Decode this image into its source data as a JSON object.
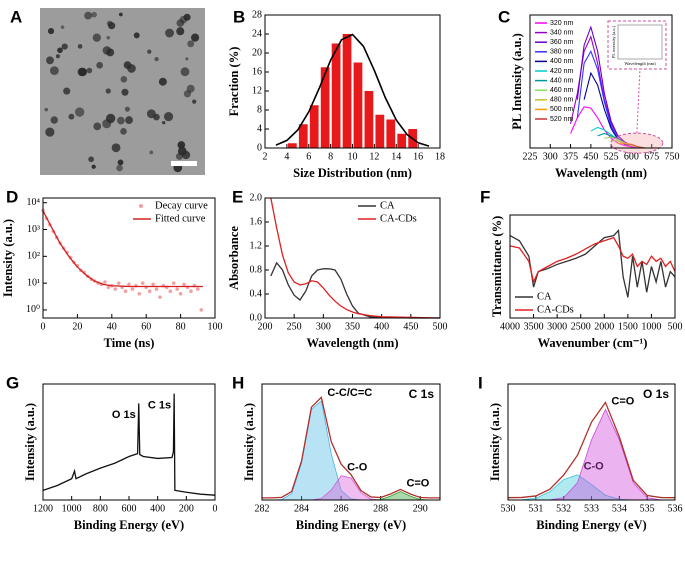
{
  "chart_data": [
    {
      "type": "image",
      "panel": "A"
    },
    {
      "type": "bar",
      "panel": "B",
      "xlabel": "Size Distribution (nm)",
      "ylabel": "Fraction (%)",
      "xlim": [
        2,
        18
      ],
      "ylim": [
        0,
        28
      ],
      "xticks": [
        2,
        4,
        6,
        8,
        10,
        12,
        14,
        16,
        18
      ],
      "yticks": [
        0,
        4,
        8,
        12,
        16,
        20,
        24,
        28
      ],
      "x": [
        4.5,
        5.5,
        6.5,
        7.5,
        8.5,
        9.5,
        10.5,
        11.5,
        12.5,
        13.5,
        14.5,
        15.5
      ],
      "values": [
        1,
        5,
        9,
        17,
        22,
        24,
        18,
        12,
        7,
        6,
        3,
        4
      ],
      "color": "#e8191a",
      "fit": {
        "color": "#000000",
        "x": [
          3,
          4,
          5,
          6,
          7,
          8,
          9,
          10,
          11,
          12,
          13,
          14,
          15,
          16,
          17
        ],
        "values": [
          0.6,
          1.6,
          3.8,
          7.6,
          12.8,
          18.5,
          22.8,
          23.9,
          21.4,
          16.3,
          10.6,
          5.9,
          2.8,
          1.1,
          0.4
        ]
      }
    },
    {
      "type": "line",
      "panel": "C",
      "xlabel": "Wavelength (nm)",
      "ylabel": "PL Intensity (a.u.)",
      "xlim": [
        225,
        750
      ],
      "ylim": [
        0,
        110
      ],
      "xticks": [
        225,
        300,
        375,
        450,
        525,
        600,
        675,
        750
      ],
      "legend": "upper left",
      "inset_xlabel": "Wavelength (nm)",
      "inset_ylabel": "PL intensity (a.u.)",
      "x": [
        325,
        350,
        375,
        400,
        425,
        450,
        475,
        500,
        525,
        550,
        575,
        600,
        625,
        650
      ],
      "series": [
        {
          "name": "320 nm",
          "color": "#ff00ff",
          "mark": "line",
          "values": [
            null,
            null,
            12,
            25,
            34,
            33,
            25,
            15,
            8,
            4,
            2,
            1,
            0,
            0
          ]
        },
        {
          "name": "340 nm",
          "color": "#9900cc",
          "mark": "line",
          "values": [
            null,
            null,
            20,
            45,
            80,
            92,
            70,
            40,
            20,
            10,
            4,
            2,
            1,
            0
          ]
        },
        {
          "name": "360 nm",
          "color": "#6600cc",
          "mark": "line",
          "values": [
            null,
            null,
            null,
            40,
            85,
            100,
            80,
            45,
            22,
            10,
            5,
            2,
            1,
            0
          ]
        },
        {
          "name": "380 nm",
          "color": "#3333ff",
          "mark": "line",
          "values": [
            null,
            null,
            null,
            25,
            70,
            80,
            65,
            38,
            18,
            8,
            4,
            2,
            1,
            0
          ]
        },
        {
          "name": "400 nm",
          "color": "#000099",
          "mark": "line",
          "values": [
            null,
            null,
            null,
            null,
            40,
            62,
            52,
            32,
            16,
            7,
            3,
            2,
            1,
            0
          ]
        },
        {
          "name": "420 nm",
          "color": "#00cccc",
          "mark": "line",
          "values": [
            null,
            null,
            null,
            null,
            null,
            14,
            17,
            15,
            11,
            7,
            4,
            2,
            1,
            0
          ]
        },
        {
          "name": "440 nm",
          "color": "#009999",
          "mark": "line",
          "values": [
            null,
            null,
            null,
            null,
            null,
            null,
            10,
            12,
            10,
            7,
            4,
            2,
            1,
            0
          ]
        },
        {
          "name": "460 nm",
          "color": "#88e060",
          "mark": "line",
          "values": [
            null,
            null,
            null,
            null,
            null,
            null,
            null,
            8,
            9,
            7,
            4,
            2,
            1,
            0
          ]
        },
        {
          "name": "480 nm",
          "color": "#c8c030",
          "mark": "line",
          "values": [
            null,
            null,
            null,
            null,
            null,
            null,
            null,
            null,
            6,
            6,
            4,
            2,
            1,
            0
          ]
        },
        {
          "name": "500 nm",
          "color": "#ff9900",
          "mark": "line",
          "values": [
            null,
            null,
            null,
            null,
            null,
            null,
            null,
            null,
            null,
            4,
            4,
            3,
            1,
            0
          ]
        },
        {
          "name": "520 nm",
          "color": "#cc3333",
          "mark": "line",
          "values": [
            null,
            null,
            null,
            null,
            null,
            null,
            null,
            null,
            null,
            null,
            3,
            3,
            1,
            0
          ]
        }
      ]
    },
    {
      "type": "line",
      "panel": "D",
      "xlabel": "Time (ns)",
      "ylabel": "Intensity (a.u.)",
      "log_y": true,
      "xlim": [
        0,
        100
      ],
      "ylim": [
        0.5,
        15000
      ],
      "xticks": [
        0,
        20,
        40,
        60,
        80,
        100
      ],
      "yticks": [
        {
          "value": 1,
          "label": "10⁰"
        },
        {
          "value": 10,
          "label": "10¹"
        },
        {
          "value": 100,
          "label": "10²"
        },
        {
          "value": 1000,
          "label": "10³"
        },
        {
          "value": 10000,
          "label": "10⁴"
        }
      ],
      "legend": "upper right",
      "series": [
        {
          "name": "Decay curve",
          "color": "#f4a0a0",
          "mark": "scatter",
          "x": [
            0,
            2,
            4,
            6,
            8,
            10,
            12,
            14,
            16,
            18,
            20,
            22,
            24,
            26,
            28,
            30,
            32,
            34,
            36,
            38,
            40,
            42,
            44,
            46,
            48,
            50,
            52,
            54,
            56,
            58,
            60,
            62,
            64,
            66,
            68,
            70,
            72,
            74,
            76,
            78,
            80,
            82,
            84,
            86,
            88,
            90,
            92
          ],
          "values": [
            5200,
            2600,
            1500,
            850,
            500,
            310,
            200,
            140,
            90,
            60,
            45,
            30,
            25,
            18,
            14,
            12,
            10,
            9,
            11,
            7,
            8,
            6,
            10,
            7,
            5,
            9,
            6,
            8,
            4,
            10,
            7,
            5,
            9,
            6,
            3,
            8,
            7,
            5,
            10,
            6,
            4,
            9,
            7,
            5,
            8,
            6,
            1
          ]
        },
        {
          "name": "Fitted curve",
          "color": "#d42020",
          "mark": "line",
          "x": [
            0,
            5,
            10,
            15,
            20,
            25,
            30,
            35,
            40,
            50,
            60,
            70,
            80,
            90,
            93
          ],
          "values": [
            5000,
            1200,
            300,
            100,
            40,
            20,
            12,
            9,
            8,
            7.5,
            7.5,
            7.5,
            7.5,
            7.5,
            7.5
          ]
        }
      ]
    },
    {
      "type": "line",
      "panel": "E",
      "xlabel": "Wavelength (nm)",
      "ylabel": "Absorbance",
      "xlim": [
        200,
        500
      ],
      "ylim": [
        0,
        2
      ],
      "xticks": [
        200,
        250,
        300,
        350,
        400,
        450,
        500
      ],
      "yticks": [
        {
          "value": 0,
          "label": "0.0"
        },
        0.4,
        0.8,
        1.2,
        1.6,
        {
          "value": 2,
          "label": "2.0"
        }
      ],
      "legend": "upper right",
      "x": [
        210,
        220,
        230,
        240,
        250,
        260,
        270,
        280,
        290,
        300,
        310,
        320,
        330,
        340,
        350,
        360,
        380,
        400,
        450,
        500
      ],
      "series": [
        {
          "name": "CA",
          "color": "#333333",
          "mark": "line",
          "values": [
            0.7,
            0.92,
            0.8,
            0.55,
            0.38,
            0.3,
            0.45,
            0.7,
            0.8,
            0.82,
            0.82,
            0.8,
            0.65,
            0.4,
            0.2,
            0.08,
            0.02,
            0.01,
            0,
            0
          ]
        },
        {
          "name": "CA-CDs",
          "color": "#e02020",
          "mark": "line",
          "values": [
            2.0,
            1.5,
            1.05,
            0.75,
            0.6,
            0.55,
            0.57,
            0.62,
            0.6,
            0.5,
            0.38,
            0.28,
            0.2,
            0.14,
            0.1,
            0.07,
            0.04,
            0.02,
            0.01,
            0
          ]
        }
      ]
    },
    {
      "type": "line",
      "panel": "F",
      "xlabel": "Wavenumber (cm⁻¹)",
      "ylabel": "Transmittance (%)",
      "xlim": [
        4000,
        500
      ],
      "ylim": [
        0,
        100
      ],
      "xticks": [
        4000,
        3500,
        3000,
        2500,
        2000,
        1500,
        1000,
        500
      ],
      "legend": "lower left",
      "x": [
        4000,
        3800,
        3600,
        3500,
        3400,
        3200,
        3000,
        2800,
        2600,
        2400,
        2200,
        2000,
        1800,
        1700,
        1600,
        1500,
        1400,
        1300,
        1200,
        1100,
        1000,
        900,
        800,
        700,
        600,
        500
      ],
      "series": [
        {
          "name": "CA",
          "color": "#333333",
          "mark": "line",
          "values": [
            80,
            75,
            60,
            30,
            45,
            48,
            52,
            55,
            58,
            62,
            70,
            78,
            80,
            85,
            40,
            20,
            60,
            30,
            55,
            25,
            50,
            35,
            55,
            30,
            45,
            40
          ]
        },
        {
          "name": "CA-CDs",
          "color": "#e02020",
          "mark": "line",
          "values": [
            70,
            68,
            55,
            35,
            45,
            50,
            55,
            58,
            62,
            67,
            72,
            75,
            78,
            70,
            60,
            58,
            62,
            50,
            55,
            52,
            60,
            55,
            58,
            50,
            55,
            45
          ]
        }
      ]
    },
    {
      "type": "line",
      "panel": "G",
      "xlabel": "Binding Energy (eV)",
      "ylabel": "Intensity (a.u.)",
      "xlim": [
        1200,
        0
      ],
      "ylim": [
        0,
        120
      ],
      "xticks": [
        1200,
        1000,
        800,
        600,
        400,
        200,
        0
      ],
      "annotations": [
        {
          "text": "O 1s",
          "x": 532
        },
        {
          "text": "C 1s",
          "x": 285
        }
      ],
      "series": [
        {
          "color": "#111111",
          "mark": "line",
          "x": [
            1200,
            1100,
            1000,
            980,
            970,
            900,
            800,
            700,
            600,
            540,
            532,
            525,
            500,
            400,
            300,
            290,
            285,
            280,
            200,
            100,
            0
          ],
          "values": [
            10,
            15,
            22,
            30,
            22,
            27,
            33,
            38,
            45,
            48,
            100,
            47,
            45,
            43,
            44,
            50,
            110,
            10,
            8,
            6,
            5
          ]
        }
      ]
    },
    {
      "type": "line",
      "panel": "H",
      "title": "C 1s",
      "xlabel": "Binding Energy (eV)",
      "ylabel": "Intensity (a.u.)",
      "xlim": [
        282,
        291
      ],
      "ylim": [
        0,
        110
      ],
      "xticks": [
        282,
        284,
        286,
        288,
        290
      ],
      "name_at_peak": true,
      "x": [
        282,
        282.5,
        283,
        283.5,
        284,
        284.5,
        285,
        285.5,
        286,
        286.5,
        287,
        287.5,
        288,
        288.5,
        289,
        289.5,
        290,
        290.5,
        291
      ],
      "series": [
        {
          "name": "C-C/C=C",
          "color": "#4cb8e6",
          "mark": "area",
          "values": [
            0,
            0,
            0.5,
            6,
            35,
            86,
            94,
            44,
            9,
            1,
            0,
            0,
            0,
            0,
            0,
            0,
            0,
            0,
            0
          ]
        },
        {
          "name": "C-O",
          "color": "#d65ad6",
          "mark": "area",
          "values": [
            0,
            0,
            0,
            0,
            0,
            0,
            1.4,
            9.4,
            23,
            21,
            7,
            0.9,
            0,
            0,
            0,
            0,
            0,
            0,
            0
          ]
        },
        {
          "name": "C=O",
          "color": "#2ca02c",
          "mark": "area",
          "values": [
            0,
            0,
            0,
            0,
            0,
            0,
            0,
            0,
            0,
            0,
            0,
            0,
            0.4,
            3.7,
            8,
            3.7,
            0.4,
            0,
            0
          ]
        },
        {
          "color": "#b0302a",
          "mark": "line",
          "values": [
            2,
            2,
            2.5,
            8,
            37,
            88,
            97.4,
            55.4,
            34,
            24,
            9,
            2.9,
            2.4,
            5.7,
            10,
            5.7,
            2.4,
            2,
            2
          ]
        }
      ]
    },
    {
      "type": "line",
      "panel": "I",
      "title": "O 1s",
      "xlabel": "Binding Energy (eV)",
      "ylabel": "Intensity (a.u.)",
      "xlim": [
        530,
        536
      ],
      "ylim": [
        0,
        100
      ],
      "xticks": [
        530,
        531,
        532,
        533,
        534,
        535,
        536
      ],
      "name_at_peak": true,
      "x": [
        530,
        530.5,
        531,
        531.5,
        532,
        532.5,
        533,
        533.5,
        534,
        534.5,
        535,
        535.5,
        536
      ],
      "series": [
        {
          "name": "C-O",
          "color": "#3cc8dc",
          "mark": "area",
          "values": [
            0,
            0.15,
            1.5,
            7.1,
            17.6,
            21.7,
            13.3,
            4.1,
            0.6,
            0,
            0,
            0,
            0
          ]
        },
        {
          "name": "C=O",
          "color": "#cc44dd",
          "mark": "area",
          "values": [
            0,
            0,
            0,
            0.1,
            1.9,
            15,
            51.8,
            78,
            51.8,
            15,
            1.9,
            0.1,
            0
          ]
        },
        {
          "color": "#b0302a",
          "mark": "line",
          "values": [
            2,
            2.2,
            3.5,
            9.2,
            21.5,
            38.7,
            67.1,
            84.1,
            54.4,
            17,
            3.9,
            2.1,
            2
          ]
        }
      ]
    }
  ]
}
